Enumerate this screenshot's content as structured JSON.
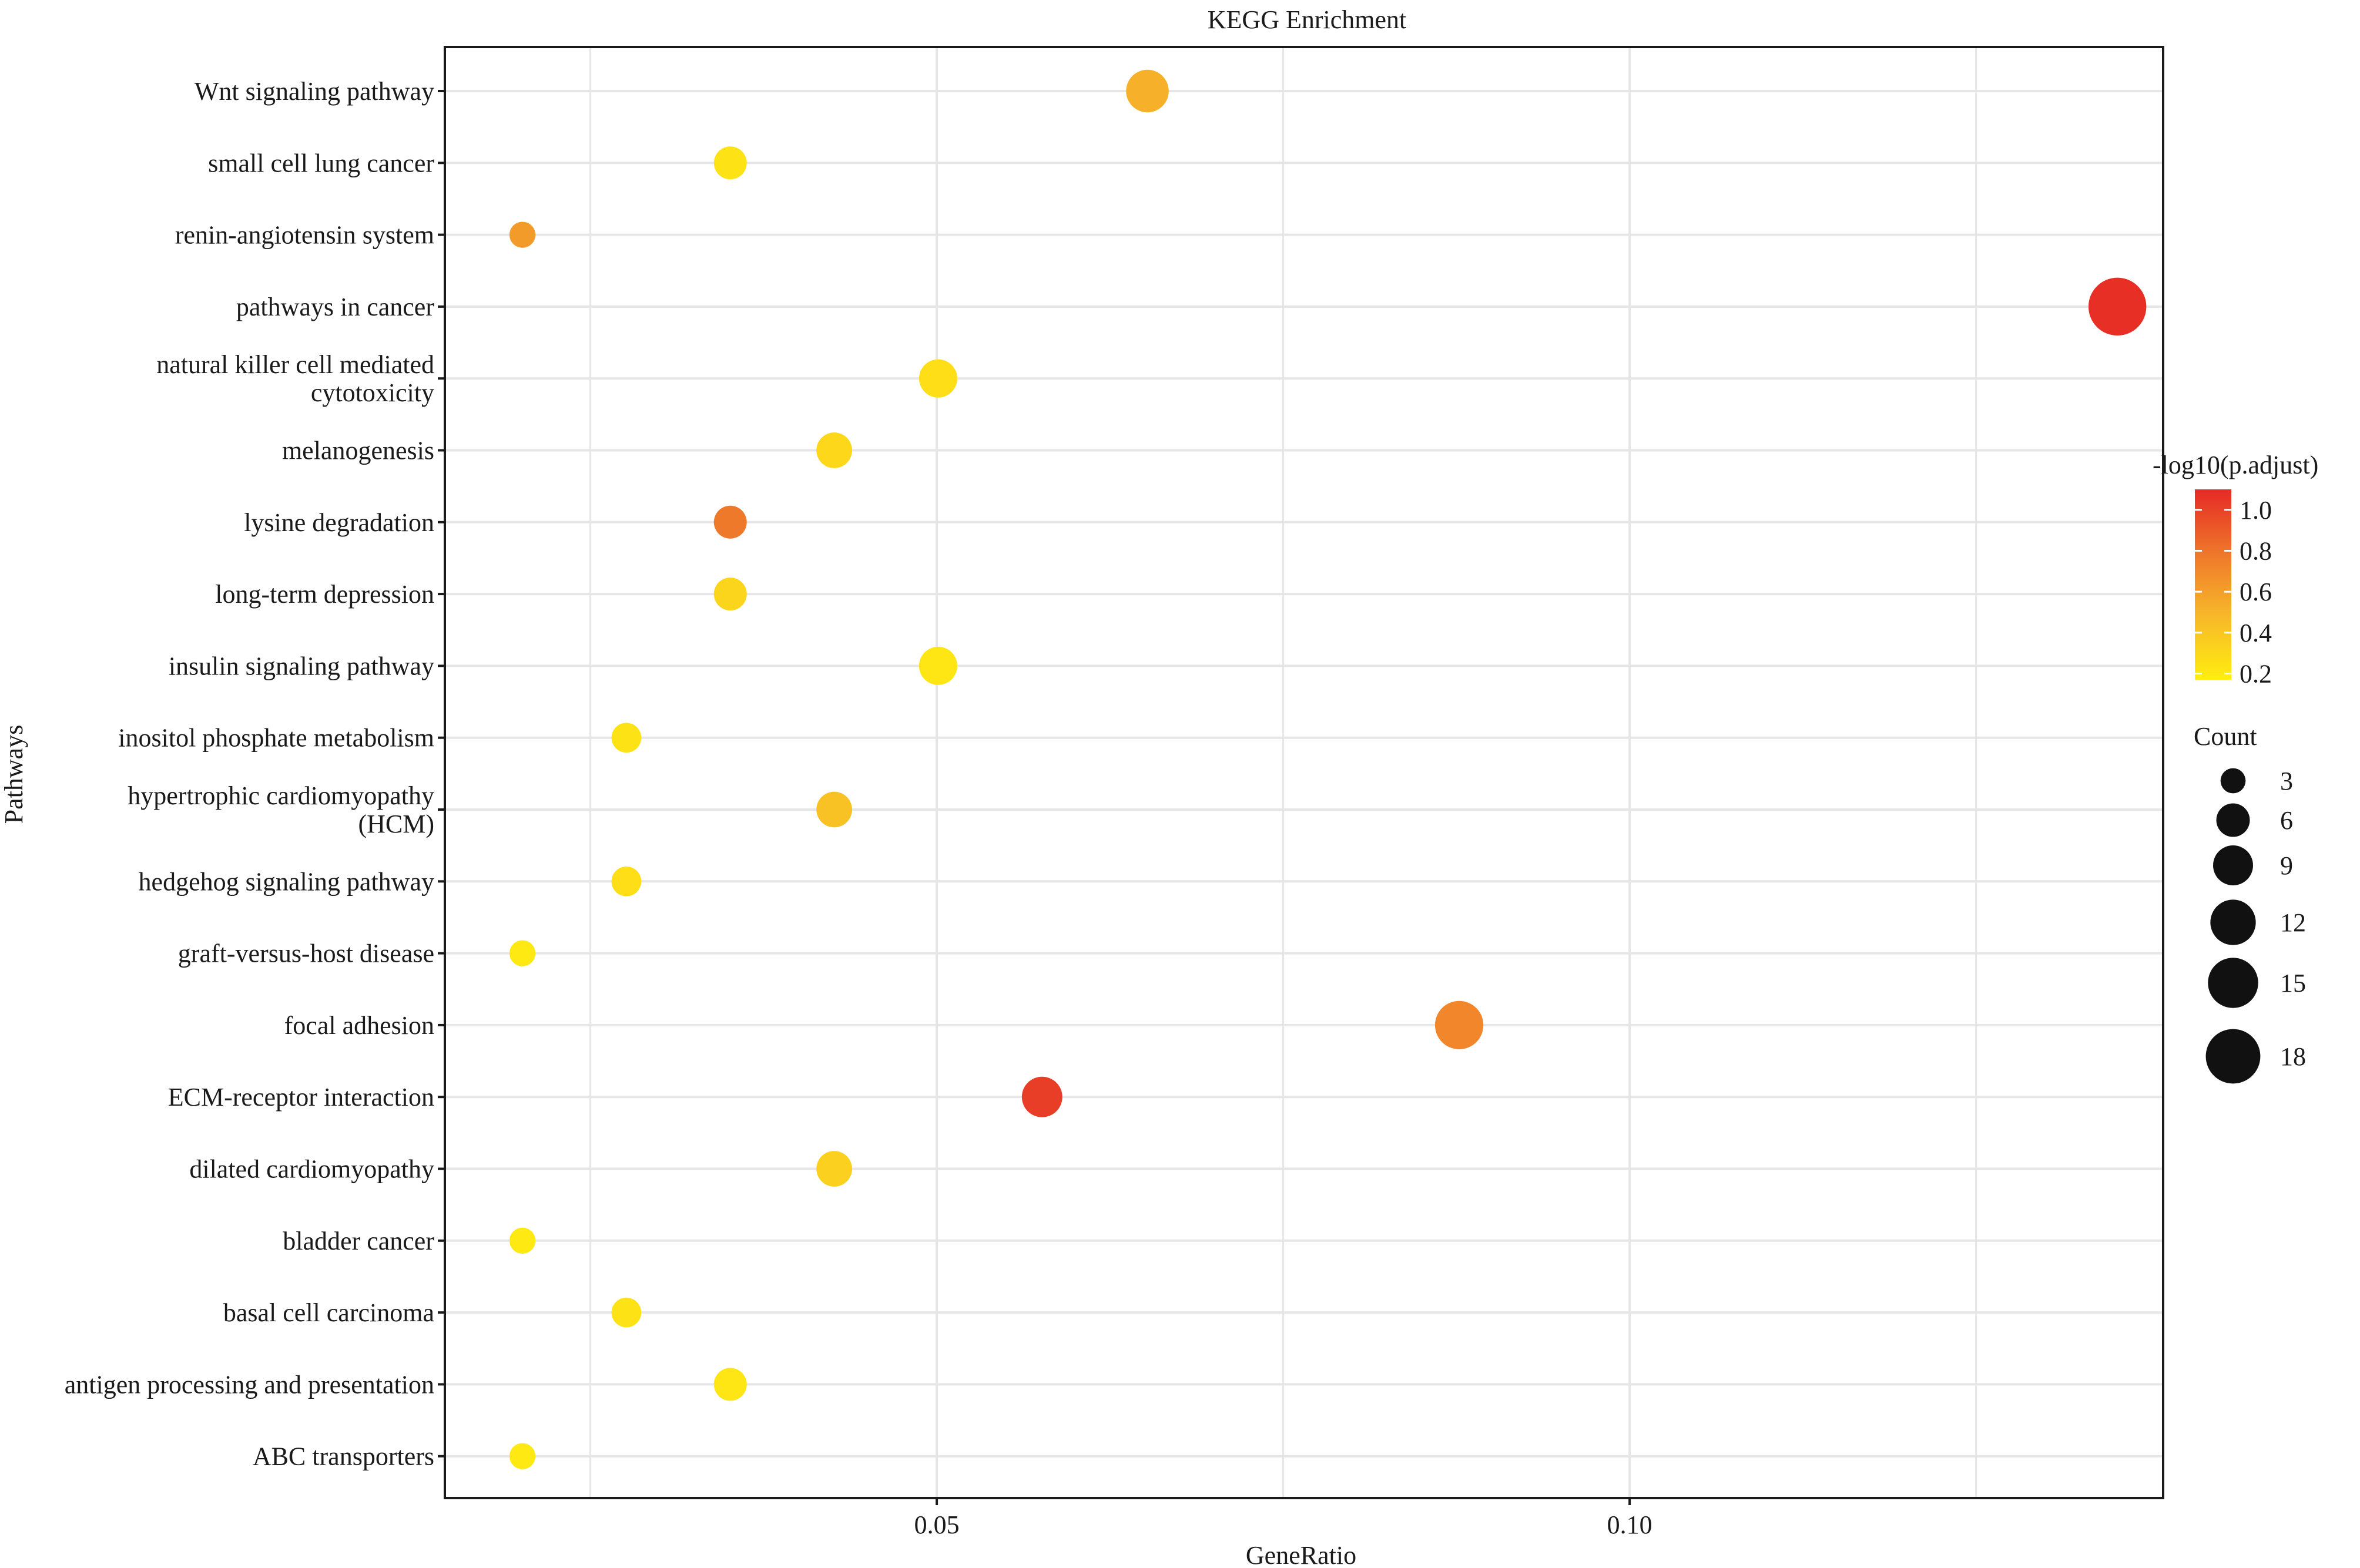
{
  "chart_data": {
    "type": "scatter",
    "title": "KEGG Enrichment",
    "xlabel": "GeneRatio",
    "ylabel": "Pathways",
    "xlim": [
      0.0145,
      0.1385
    ],
    "x_ticks": [
      {
        "value": 0.05,
        "label": "0.05"
      },
      {
        "value": 0.1,
        "label": "0.10"
      }
    ],
    "x_minor_grid": [
      0.025,
      0.075,
      0.125
    ],
    "grid": true,
    "categories": [
      {
        "label": [
          "ABC transporters"
        ]
      },
      {
        "label": [
          "antigen processing and presentation"
        ]
      },
      {
        "label": [
          "basal cell carcinoma"
        ]
      },
      {
        "label": [
          "bladder cancer"
        ]
      },
      {
        "label": [
          "dilated cardiomyopathy"
        ]
      },
      {
        "label": [
          "ECM-receptor interaction"
        ]
      },
      {
        "label": [
          "focal adhesion"
        ]
      },
      {
        "label": [
          "graft-versus-host disease"
        ]
      },
      {
        "label": [
          "hedgehog signaling pathway"
        ]
      },
      {
        "label": [
          "hypertrophic cardiomyopathy",
          "(HCM)"
        ]
      },
      {
        "label": [
          "inositol phosphate metabolism"
        ]
      },
      {
        "label": [
          "insulin signaling pathway"
        ]
      },
      {
        "label": [
          "long-term depression"
        ]
      },
      {
        "label": [
          "lysine degradation"
        ]
      },
      {
        "label": [
          "melanogenesis"
        ]
      },
      {
        "label": [
          "natural killer cell mediated",
          "cytotoxicity"
        ]
      },
      {
        "label": [
          "pathways in cancer"
        ]
      },
      {
        "label": [
          "renin-angiotensin system"
        ]
      },
      {
        "label": [
          "small cell lung cancer"
        ]
      },
      {
        "label": [
          "Wnt signaling pathway"
        ]
      }
    ],
    "points": [
      {
        "pathway": "ABC transporters",
        "gene_ratio": 0.0201,
        "count": 2,
        "neg_log10_padj": 0.2
      },
      {
        "pathway": "antigen processing and presentation",
        "gene_ratio": 0.0351,
        "count": 4,
        "neg_log10_padj": 0.22
      },
      {
        "pathway": "basal cell carcinoma",
        "gene_ratio": 0.0276,
        "count": 3,
        "neg_log10_padj": 0.24
      },
      {
        "pathway": "bladder cancer",
        "gene_ratio": 0.0201,
        "count": 2,
        "neg_log10_padj": 0.2
      },
      {
        "pathway": "dilated cardiomyopathy",
        "gene_ratio": 0.0426,
        "count": 5,
        "neg_log10_padj": 0.34
      },
      {
        "pathway": "ECM-receptor interaction",
        "gene_ratio": 0.0576,
        "count": 7,
        "neg_log10_padj": 1.02
      },
      {
        "pathway": "focal adhesion",
        "gene_ratio": 0.0877,
        "count": 11,
        "neg_log10_padj": 0.72
      },
      {
        "pathway": "graft-versus-host disease",
        "gene_ratio": 0.0201,
        "count": 2,
        "neg_log10_padj": 0.2
      },
      {
        "pathway": "hedgehog signaling pathway",
        "gene_ratio": 0.0276,
        "count": 3,
        "neg_log10_padj": 0.26
      },
      {
        "pathway": "hypertrophic cardiomyopathy (HCM)",
        "gene_ratio": 0.0426,
        "count": 5,
        "neg_log10_padj": 0.42
      },
      {
        "pathway": "inositol phosphate metabolism",
        "gene_ratio": 0.0276,
        "count": 3,
        "neg_log10_padj": 0.24
      },
      {
        "pathway": "insulin signaling pathway",
        "gene_ratio": 0.0501,
        "count": 6,
        "neg_log10_padj": 0.22
      },
      {
        "pathway": "long-term depression",
        "gene_ratio": 0.0351,
        "count": 4,
        "neg_log10_padj": 0.32
      },
      {
        "pathway": "lysine degradation",
        "gene_ratio": 0.0351,
        "count": 4,
        "neg_log10_padj": 0.78
      },
      {
        "pathway": "melanogenesis",
        "gene_ratio": 0.0426,
        "count": 5,
        "neg_log10_padj": 0.3
      },
      {
        "pathway": "natural killer cell mediated cytotoxicity",
        "gene_ratio": 0.0501,
        "count": 6,
        "neg_log10_padj": 0.26
      },
      {
        "pathway": "pathways in cancer",
        "gene_ratio": 0.1352,
        "count": 17,
        "neg_log10_padj": 1.08
      },
      {
        "pathway": "renin-angiotensin system",
        "gene_ratio": 0.0201,
        "count": 2,
        "neg_log10_padj": 0.62
      },
      {
        "pathway": "small cell lung cancer",
        "gene_ratio": 0.0351,
        "count": 4,
        "neg_log10_padj": 0.24
      },
      {
        "pathway": "Wnt signaling pathway",
        "gene_ratio": 0.0652,
        "count": 8,
        "neg_log10_padj": 0.52
      }
    ],
    "color_legend": {
      "title": "-log10(p.adjust)",
      "ticks": [
        {
          "value": 1.0,
          "label": "1.0"
        },
        {
          "value": 0.8,
          "label": "0.8"
        },
        {
          "value": 0.6,
          "label": "0.6"
        },
        {
          "value": 0.4,
          "label": "0.4"
        },
        {
          "value": 0.2,
          "label": "0.2"
        }
      ],
      "range": [
        0.17,
        1.1
      ],
      "low_color": "#ffee10",
      "high_color": "#e62a26",
      "placement": "right"
    },
    "size_legend": {
      "title": "Count",
      "entries": [
        {
          "value": 3,
          "label": "3"
        },
        {
          "value": 6,
          "label": "6"
        },
        {
          "value": 9,
          "label": "9"
        },
        {
          "value": 12,
          "label": "12"
        },
        {
          "value": 15,
          "label": "15"
        },
        {
          "value": 18,
          "label": "18"
        }
      ],
      "placement": "right"
    }
  },
  "colors": {
    "grid": "#e6e6e6",
    "panel_border": "#1a1a1a",
    "text": "#1a1a1a",
    "legend_dot": "#111111"
  }
}
